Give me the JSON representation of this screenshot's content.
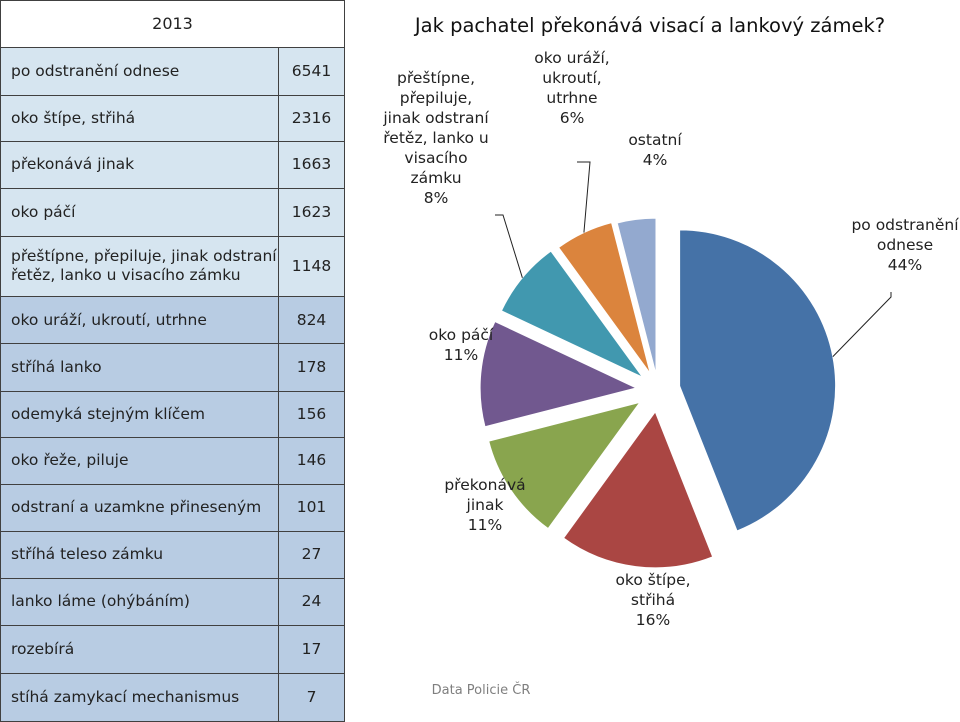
{
  "table": {
    "header": "2013",
    "rows": [
      {
        "label": "po odstranění odnese",
        "value": "6541"
      },
      {
        "label": "oko štípe, střihá",
        "value": "2316"
      },
      {
        "label": "překonává jinak",
        "value": "1663"
      },
      {
        "label": "oko páčí",
        "value": "1623"
      },
      {
        "label": "přeštípne, přepiluje, jinak odstraní řetěz, lanko u visacího zámku",
        "value": "1148"
      },
      {
        "label": "oko uráží, ukroutí, utrhne",
        "value": "824"
      },
      {
        "label": "stříhá lanko",
        "value": "178"
      },
      {
        "label": "odemyká stejným klíčem",
        "value": "156"
      },
      {
        "label": "oko řeže, piluje",
        "value": "146"
      },
      {
        "label": "odstraní a uzamkne přineseným",
        "value": "101"
      },
      {
        "label": "stříhá teleso zámku",
        "value": "27"
      },
      {
        "label": "lanko láme (ohýbáním)",
        "value": "24"
      },
      {
        "label": "rozebírá",
        "value": "17"
      },
      {
        "label": "stíhá zamykací mechanismus",
        "value": "7"
      }
    ]
  },
  "chart_data": {
    "type": "pie",
    "title": "Jak pachatel překonává visací a lankový zámek?",
    "source": "Data Policie ČR",
    "slices": [
      {
        "lines": [
          "po odstranění",
          "odnese",
          "44%"
        ],
        "value": 44,
        "color": "#4572a7"
      },
      {
        "lines": [
          "oko štípe,",
          "střihá",
          "16%"
        ],
        "value": 16,
        "color": "#aa4643"
      },
      {
        "lines": [
          "překonává",
          "jinak",
          "11%"
        ],
        "value": 11,
        "color": "#89a54e"
      },
      {
        "lines": [
          "oko páčí",
          "11%"
        ],
        "value": 11,
        "color": "#71588f"
      },
      {
        "lines": [
          "přeštípne,",
          "přepiluje,",
          "jinak odstraní",
          "řetěz, lanko u",
          "visacího",
          "zámku",
          "8%"
        ],
        "value": 8,
        "color": "#4198af"
      },
      {
        "lines": [
          "oko uráží,",
          "ukroutí,",
          "utrhne",
          "6%"
        ],
        "value": 6,
        "color": "#db843d"
      },
      {
        "lines": [
          "ostatní",
          "4%"
        ],
        "value": 4,
        "color": "#93a9cf"
      }
    ]
  }
}
